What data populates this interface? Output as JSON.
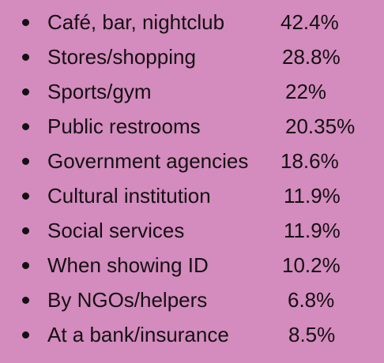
{
  "list": {
    "items": [
      {
        "label": "Café, bar, nightclub",
        "value": "42.4%"
      },
      {
        "label": "Stores/shopping",
        "value": "28.8%"
      },
      {
        "label": "Sports/gym",
        "value": "22%"
      },
      {
        "label": "Public restrooms",
        "value": "20.35%"
      },
      {
        "label": "Government agencies",
        "value": "18.6%"
      },
      {
        "label": "Cultural institution",
        "value": "11.9%"
      },
      {
        "label": "Social services",
        "value": "11.9%"
      },
      {
        "label": "When showing ID",
        "value": "10.2%"
      },
      {
        "label": "By NGOs/helpers",
        "value": "6.8%"
      },
      {
        "label": "At a bank/insurance",
        "value": "8.5%"
      }
    ]
  }
}
